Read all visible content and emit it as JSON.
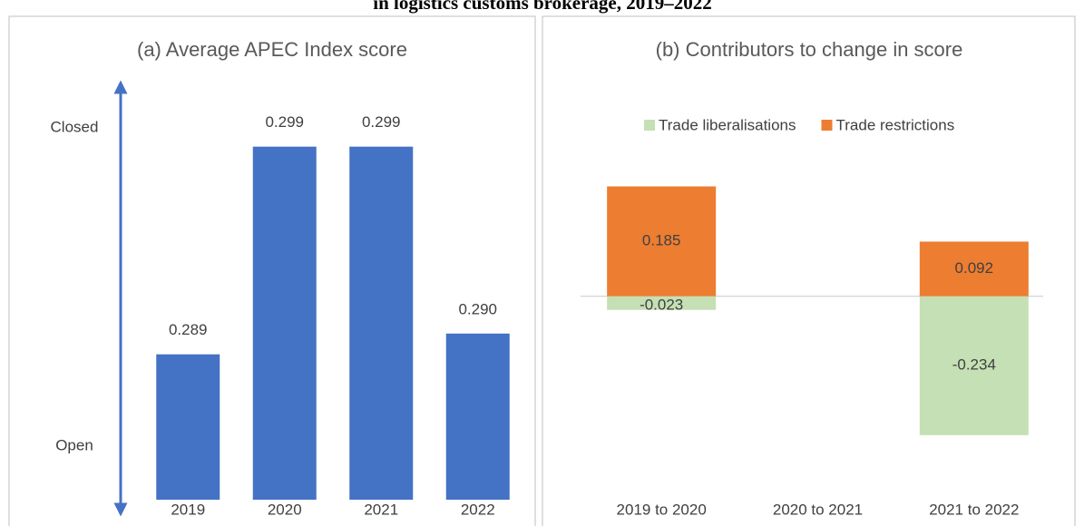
{
  "title": "in logistics customs brokerage, 2019–2022",
  "chart_data": [
    {
      "type": "bar",
      "title": "(a) Average APEC Index score",
      "categories": [
        "2019",
        "2020",
        "2021",
        "2022"
      ],
      "values": [
        0.289,
        0.299,
        0.299,
        0.29
      ],
      "value_labels": [
        "0.289",
        "0.299",
        "0.299",
        "0.290"
      ],
      "color": "#4472c4",
      "ylim": [
        0.282,
        0.302
      ],
      "annotations": [
        "Closed",
        "Open"
      ]
    },
    {
      "type": "stacked_bar",
      "title": "(b) Contributors to change in score",
      "categories": [
        "2019 to 2020",
        "2020 to 2021",
        "2021 to 2022"
      ],
      "series": [
        {
          "name": "Trade liberalisations",
          "color": "#c5e0b4",
          "values": [
            -0.023,
            null,
            -0.234
          ]
        },
        {
          "name": "Trade restrictions",
          "color": "#ed7d31",
          "values": [
            0.185,
            null,
            0.092
          ]
        }
      ],
      "ylim": [
        -0.3,
        0.25
      ],
      "legend": "top"
    }
  ]
}
